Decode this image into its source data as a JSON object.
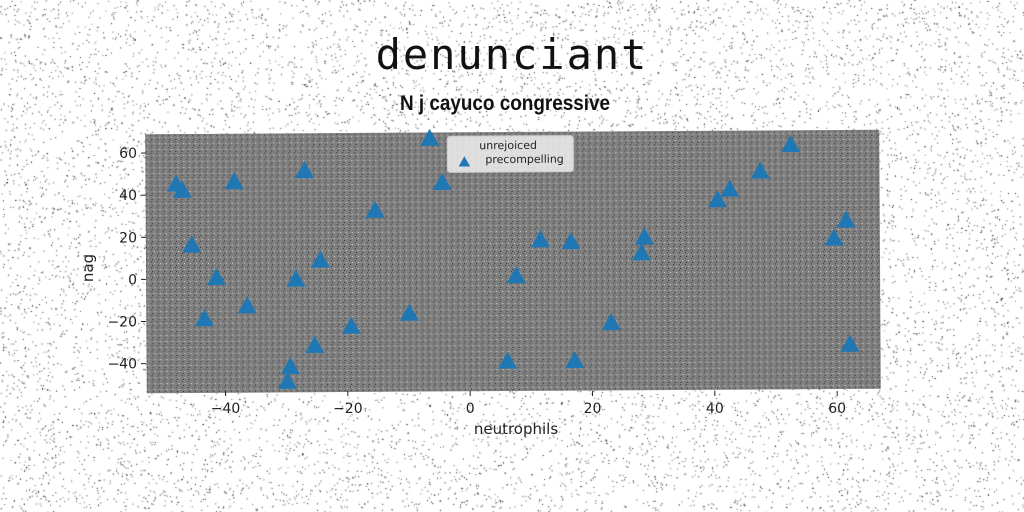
{
  "chart_data": {
    "type": "scatter",
    "title": "denunciant",
    "subtitle": "N j cayuco congressive",
    "xlabel": "neutrophils",
    "ylabel": "nag",
    "xlim": [
      -53,
      67
    ],
    "ylim": [
      -53,
      70
    ],
    "xticks": [
      -40,
      -20,
      0,
      20,
      40,
      60
    ],
    "yticks": [
      -40,
      -20,
      0,
      20,
      40,
      60
    ],
    "grid": false,
    "legend_position": "top-center",
    "plot_bg": "#808080",
    "series": [
      {
        "name": "unrejoiced",
        "marker": "none",
        "color": "#cccccc",
        "points": []
      },
      {
        "name": "precompelling",
        "marker": "triangle",
        "color": "#1f77b4",
        "points": [
          [
            -48,
            46
          ],
          [
            -47,
            43
          ],
          [
            -38.5,
            47
          ],
          [
            -45.5,
            17
          ],
          [
            -41.5,
            1.5
          ],
          [
            -43.5,
            -18
          ],
          [
            -36.5,
            -12
          ],
          [
            -27,
            52
          ],
          [
            -28.5,
            0.5
          ],
          [
            -24.5,
            9.5
          ],
          [
            -25.5,
            -31
          ],
          [
            -29.5,
            -41
          ],
          [
            -30,
            -48
          ],
          [
            -19.5,
            -22
          ],
          [
            -15.5,
            33
          ],
          [
            -10,
            -16
          ],
          [
            -6.5,
            67
          ],
          [
            -4.5,
            46
          ],
          [
            6,
            -39
          ],
          [
            7.5,
            1.5
          ],
          [
            11.5,
            18.5
          ],
          [
            16.5,
            17.5
          ],
          [
            17,
            -39
          ],
          [
            23,
            -21
          ],
          [
            28,
            12
          ],
          [
            28.5,
            19.5
          ],
          [
            40.5,
            37
          ],
          [
            42.5,
            42
          ],
          [
            47.5,
            50.5
          ],
          [
            52.5,
            63
          ],
          [
            59.5,
            18.5
          ],
          [
            61.5,
            27
          ],
          [
            62,
            -32
          ]
        ]
      }
    ]
  }
}
